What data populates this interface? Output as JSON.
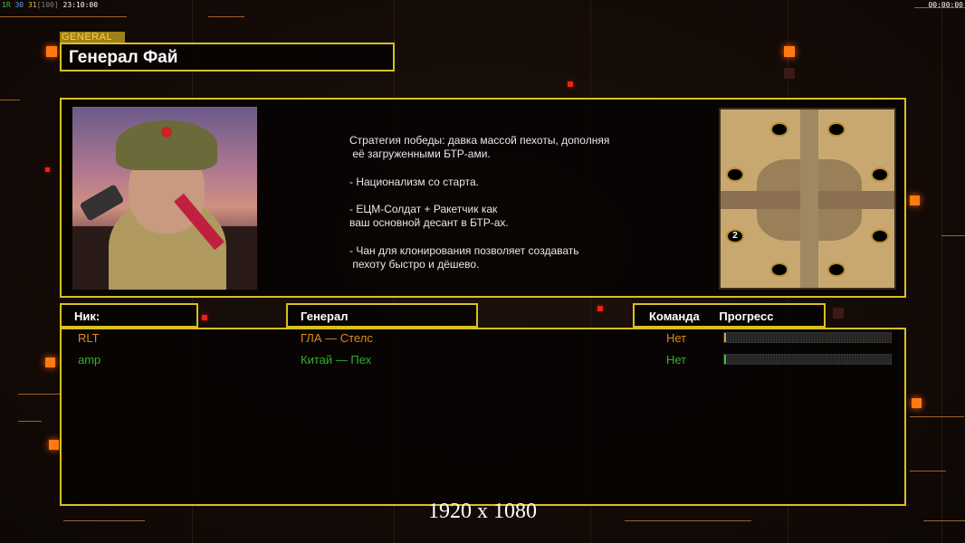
{
  "status_bar": {
    "left": [
      {
        "text": "1R",
        "color": "#40c040"
      },
      {
        "text": "30",
        "color": "#60a0ff"
      },
      {
        "text": "31",
        "color": "#e0c030"
      },
      {
        "text": "[100]",
        "color": "#808080"
      },
      {
        "text": "23:10:00",
        "color": "#ffffff"
      }
    ],
    "right_timer": "00:00:00"
  },
  "general_label": "GENERAL",
  "general_name": "Генерал Фай",
  "description": "Стратегия победы: давка массой пехоты, дополняя\n её загруженными БТР-ами.\n\n- Национализм со старта.\n\n- ЕЦМ-Солдат + Ракетчик как\nваш основной десант в БТР-ах.\n\n- Чан для клонирования позволяет создавать\n пехоту быстро и дёшево.",
  "map": {
    "player_marker": "2"
  },
  "columns": {
    "nick": "Ник:",
    "general": "Генерал",
    "team": "Команда",
    "progress": "Прогресс"
  },
  "players": [
    {
      "nick": "RLT",
      "general": "ГЛА — Стелс",
      "team": "Нет",
      "progress": 0,
      "color": "#e08a20"
    },
    {
      "nick": "amp",
      "general": "Китай — Пех",
      "team": "Нет",
      "progress": 0,
      "color": "#30b030"
    }
  ],
  "resolution_caption": "1920 x 1080"
}
